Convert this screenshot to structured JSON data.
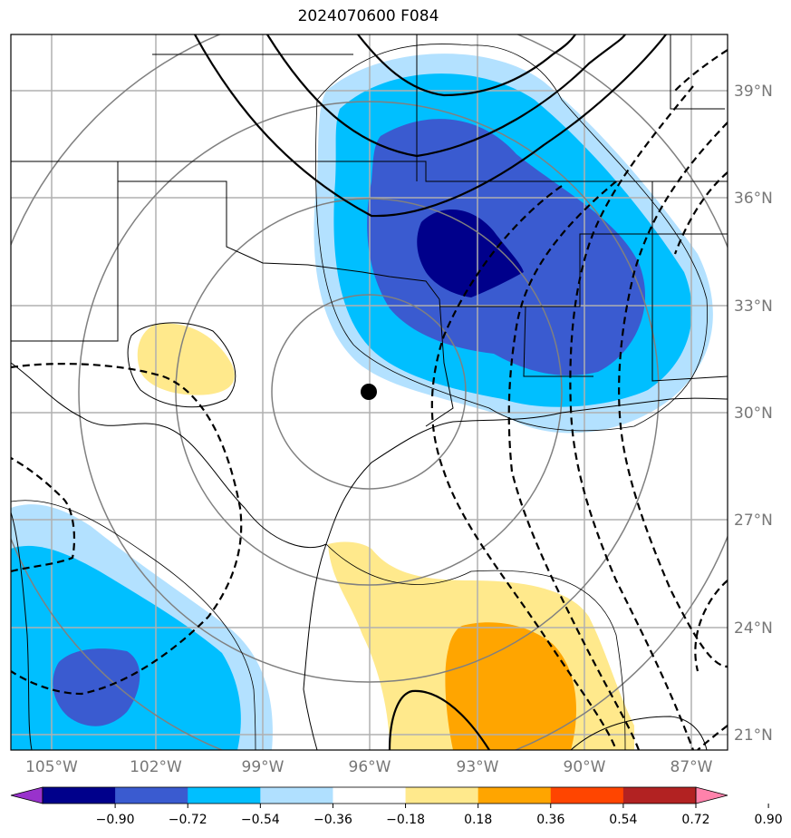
{
  "title": "2024070600 F084",
  "lon_labels": [
    "105°W",
    "102°W",
    "99°W",
    "96°W",
    "93°W",
    "90°W",
    "87°W"
  ],
  "lat_labels": [
    "39°N",
    "36°N",
    "33°N",
    "30°N",
    "27°N",
    "24°N",
    "21°N"
  ],
  "colorbar": {
    "colors": [
      "#9932cc",
      "#00008b",
      "#3a5bd0",
      "#00bfff",
      "#b0e0ff",
      "#ffffff",
      "#ffe98c",
      "#ffa500",
      "#ff4500",
      "#b22222",
      "#ff82ab"
    ],
    "tick_labels": [
      "−0.90",
      "−0.72",
      "−0.54",
      "−0.36",
      "−0.18",
      "0.18",
      "0.36",
      "0.54",
      "0.72",
      "0.90"
    ]
  },
  "colors": {
    "light_blue": "#b3e1ff",
    "deep_sky": "#00bfff",
    "royal": "#3a5bd0",
    "navy": "#00008b",
    "pale_yellow": "#ffe98c",
    "orange": "#ffa500",
    "grid": "#b0b0b0",
    "range_rings": "#808080"
  },
  "map": {
    "lon_range": [
      -105.5,
      -86.0
    ],
    "lat_range": [
      20.5,
      40.5
    ],
    "center_marker": {
      "lon": -96.0,
      "lat": 30.6
    },
    "contour_styles": [
      "solid",
      "dashed"
    ]
  }
}
